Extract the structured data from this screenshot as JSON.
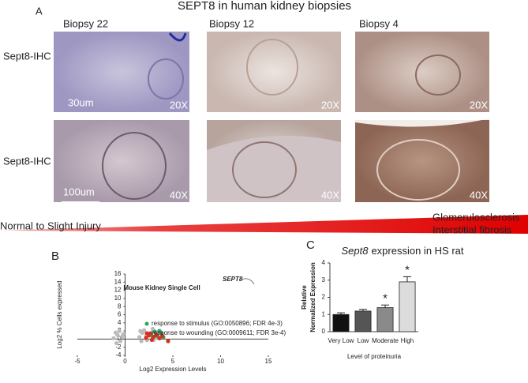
{
  "panel_a": {
    "label": "A",
    "title": "SEPT8 in human kidney biopsies",
    "columns": [
      "Biopsy 22",
      "Biopsy 12",
      "Biopsy 4"
    ],
    "rows": [
      {
        "label": "Sept8-IHC",
        "magnifications": [
          "20X",
          "20X",
          "20X"
        ],
        "scale_bar": "30um"
      },
      {
        "label": "Sept8-IHC",
        "magnifications": [
          "40X",
          "40X",
          "40X"
        ],
        "scale_bar": "100um"
      }
    ],
    "gradient_left": "Normal to Slight Injury",
    "gradient_right": [
      "Glomerulosclerosis",
      "Interstitial fibrosis"
    ]
  },
  "chart_data": [
    {
      "type": "scatter",
      "label": "B",
      "title": "Mouse Kidney Single Cell",
      "xlabel": "Log2 Expression Levels",
      "ylabel": "Log2 % Cells expressed",
      "xlim": [
        -5,
        15
      ],
      "xticks": [
        -5,
        0,
        5,
        10,
        15
      ],
      "ylim": [
        -4,
        16
      ],
      "yticks": [
        -4,
        -2,
        0,
        2,
        4,
        6,
        8,
        10,
        12,
        14,
        16
      ],
      "annotation": "SEPT8",
      "series": [
        {
          "color": "#bbbbbb",
          "x": [
            -1.2,
            -0.8,
            -0.5,
            -0.3,
            -1.0,
            -0.6,
            -0.2,
            -0.9,
            1.5,
            1.8,
            2.0,
            2.3,
            2.6,
            2.9,
            3.2,
            3.5,
            1.7,
            2.2,
            2.8,
            3.0,
            1.6,
            2.4
          ],
          "values": [
            0.2,
            1.0,
            -0.5,
            0.6,
            1.6,
            2.0,
            1.2,
            -1.0,
            0.5,
            1.5,
            2.2,
            -0.3,
            1.0,
            2.5,
            0.3,
            1.8,
            -0.5,
            0.8,
            1.6,
            -0.2,
            2.0,
            1.3
          ]
        },
        {
          "name": "response to stimulus (GO:0050896; FDR 4e-3)",
          "color": "#2ca25f",
          "x": [
            2.7,
            3.1,
            3.4,
            3.8,
            4.0,
            2.9,
            3.6
          ],
          "values": [
            1.2,
            1.8,
            0.8,
            1.5,
            0.5,
            0.4,
            2.0
          ]
        },
        {
          "name": "response to wounding (GO:0009611; FDR 3e-4)",
          "color": "#d7301f",
          "x": [
            2.2,
            2.5,
            2.8,
            3.0,
            3.3,
            3.6,
            4.5,
            2.6,
            3.9
          ],
          "values": [
            0.3,
            0.9,
            -0.2,
            0.6,
            1.0,
            0.2,
            -0.5,
            1.4,
            0.8
          ]
        }
      ]
    },
    {
      "type": "bar",
      "label": "C",
      "title_gene": "Sept8",
      "title": "expression in HS rat",
      "ylabel": [
        "Relative",
        "Normalized Expression"
      ],
      "xlabel": "Level of proteinuria",
      "categories": [
        "Very Low",
        "Low",
        "Moderate",
        "High"
      ],
      "values": [
        1.0,
        1.2,
        1.4,
        2.9
      ],
      "errors": [
        0.1,
        0.1,
        0.15,
        0.3
      ],
      "colors": [
        "#111111",
        "#555555",
        "#8a8a8a",
        "#dcdcdc"
      ],
      "annotations": [
        null,
        null,
        "*",
        "*"
      ],
      "ylim": [
        0,
        4
      ],
      "yticks": [
        0,
        1,
        2,
        3,
        4
      ]
    }
  ]
}
